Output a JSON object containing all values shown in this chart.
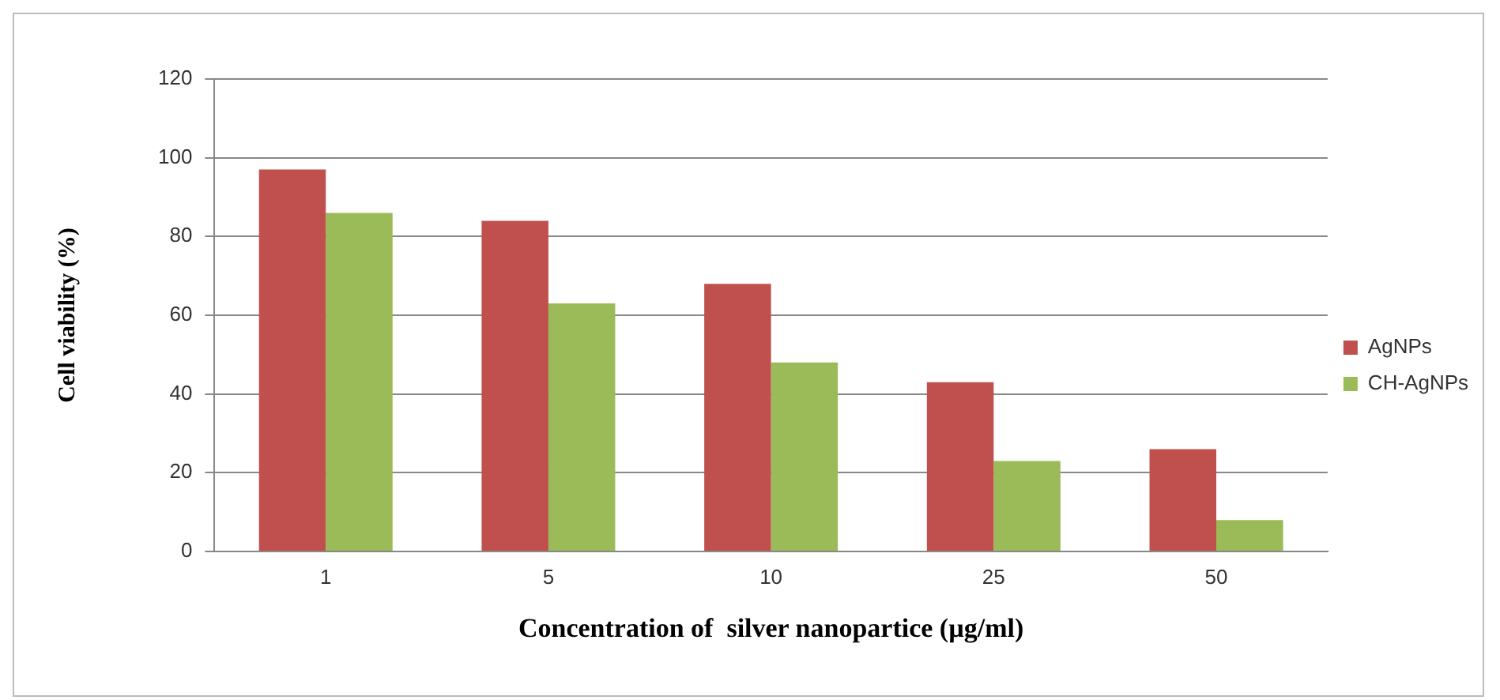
{
  "chart_data": {
    "type": "bar",
    "xlabel": "Concentration of  silver nanopartice (µg/ml)",
    "ylabel": "Cell viability (%)",
    "categories": [
      "1",
      "5",
      "10",
      "25",
      "50"
    ],
    "series": [
      {
        "name": "AgNPs",
        "color": "#c0504d",
        "values": [
          97,
          84,
          68,
          43,
          26
        ]
      },
      {
        "name": "CH-AgNPs",
        "color": "#9bbb59",
        "values": [
          86,
          63,
          48,
          23,
          8
        ]
      }
    ],
    "ylim": [
      0,
      120
    ],
    "yticks": [
      0,
      20,
      40,
      60,
      80,
      100,
      120
    ],
    "grid": "y",
    "legend": "right"
  }
}
